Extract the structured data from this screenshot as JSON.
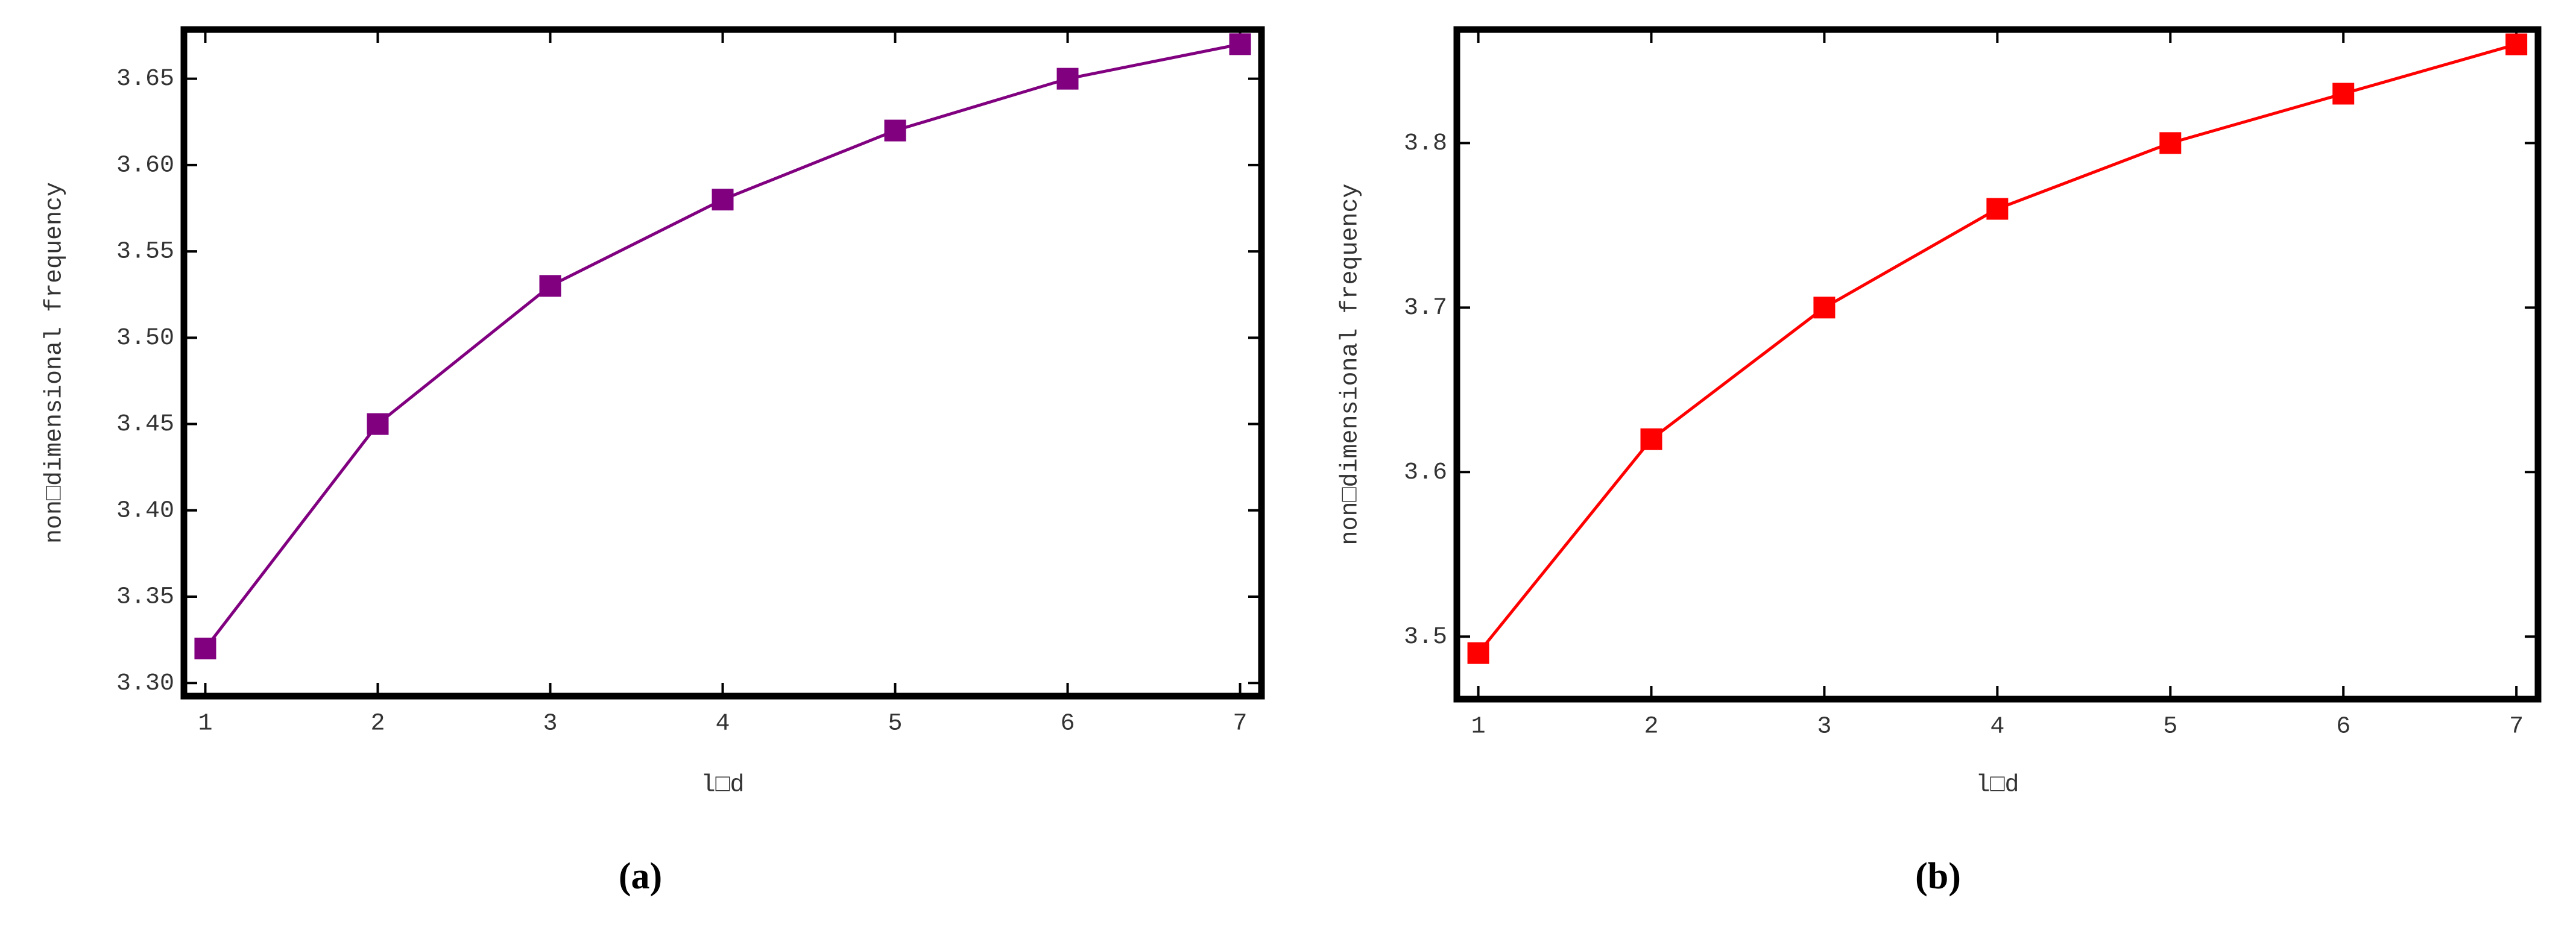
{
  "chart_data": [
    {
      "type": "line",
      "caption": "(a)",
      "xlabel": "l□d",
      "ylabel": "non□dimensional frequency",
      "x": [
        1,
        2,
        3,
        4,
        5,
        6,
        7
      ],
      "values": [
        3.32,
        3.45,
        3.53,
        3.58,
        3.62,
        3.65,
        3.67
      ],
      "color": "#800080",
      "marker": "square",
      "xlim": [
        0.876,
        7.124
      ],
      "ylim": [
        3.2924,
        3.6785
      ],
      "xticks": [
        1,
        2,
        3,
        4,
        5,
        6,
        7
      ],
      "yticks": [
        {
          "value": 3.3,
          "label": "3.30"
        },
        3.35,
        {
          "value": 3.4,
          "label": "3.40"
        },
        3.45,
        {
          "value": 3.5,
          "label": "3.50"
        },
        3.55,
        {
          "value": 3.6,
          "label": "3.60"
        },
        3.65
      ]
    },
    {
      "type": "line",
      "caption": "(b)",
      "xlabel": "l□d",
      "ylabel": "non□dimensional frequency",
      "x": [
        1,
        2,
        3,
        4,
        5,
        6,
        7
      ],
      "values": [
        3.49,
        3.62,
        3.7,
        3.76,
        3.8,
        3.83,
        3.86
      ],
      "color": "#ff0000",
      "marker": "square",
      "xlim": [
        0.876,
        7.125
      ],
      "ylim": [
        3.462,
        3.869
      ],
      "xticks": [
        1,
        2,
        3,
        4,
        5,
        6,
        7
      ],
      "yticks": [
        3.5,
        3.6,
        3.7,
        3.8
      ]
    }
  ]
}
